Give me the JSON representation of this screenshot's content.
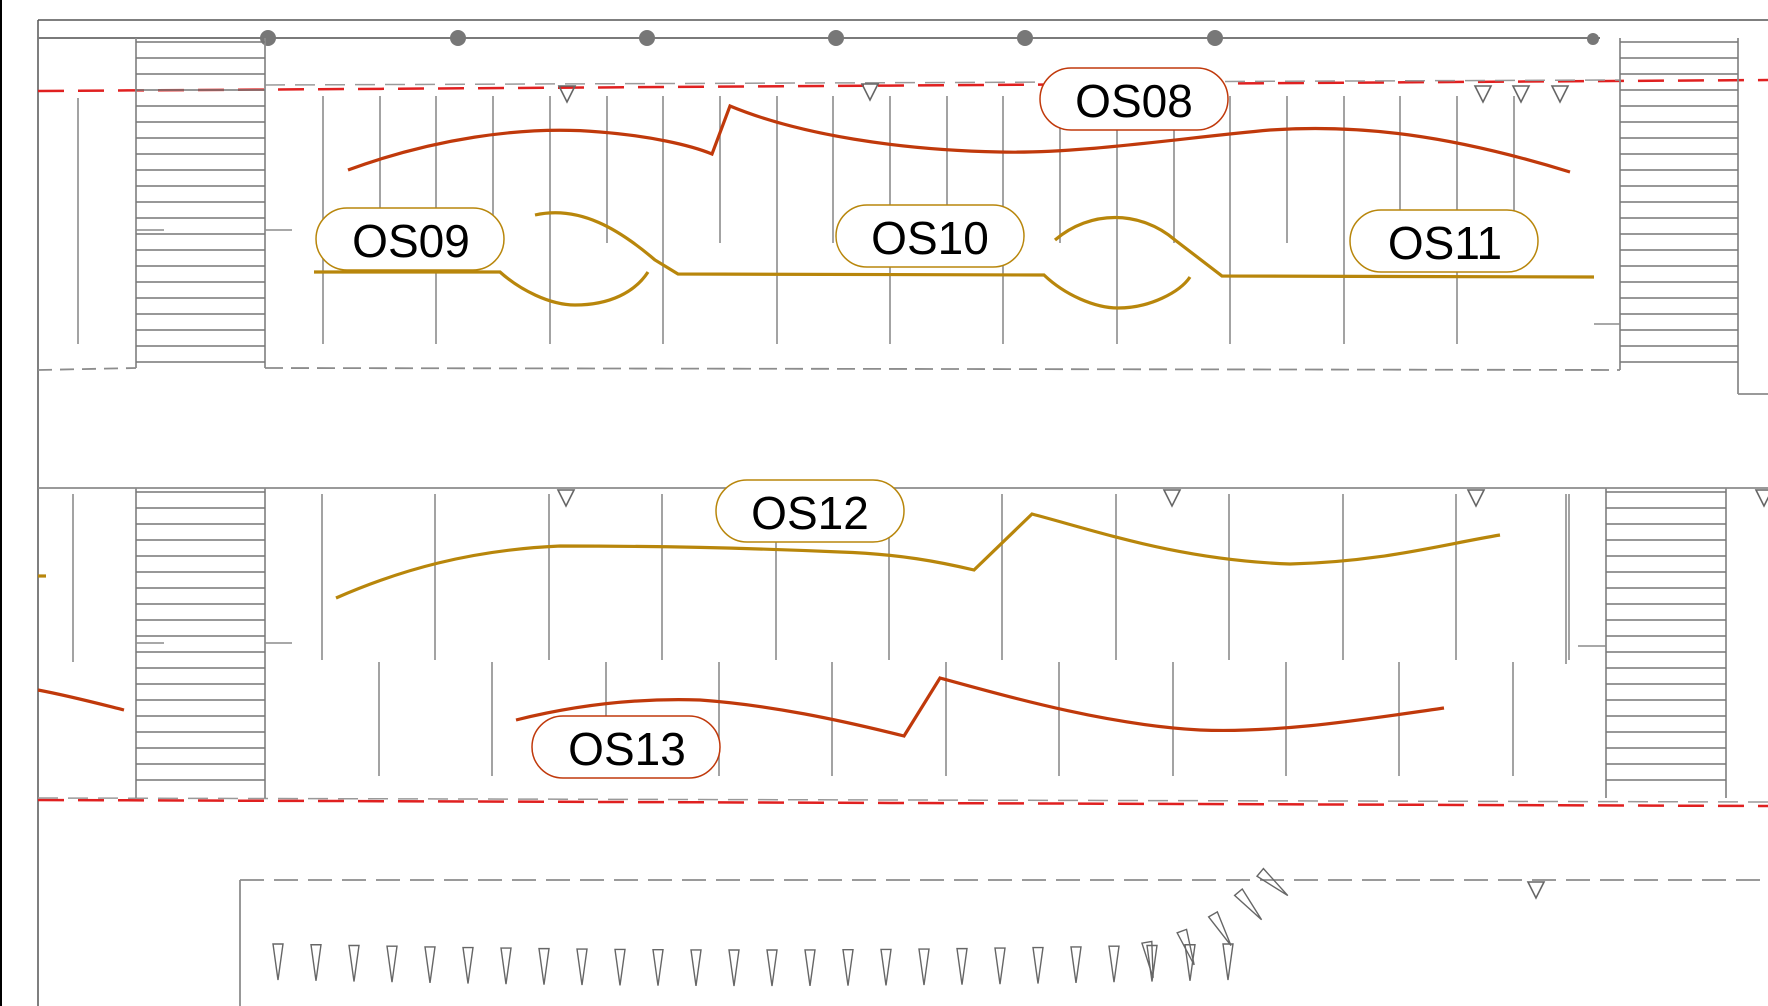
{
  "colors": {
    "line": "#8c8c8c",
    "dark": "#5a5a5a",
    "red_route": "#c0390b",
    "gold_route": "#b8860b",
    "boundary_red": "#e02020",
    "label_fill": "#ffffff"
  },
  "routes": [
    {
      "id": "OS08",
      "label": "OS08",
      "color_key": "red_route"
    },
    {
      "id": "OS09",
      "label": "OS09",
      "color_key": "gold_route"
    },
    {
      "id": "OS10",
      "label": "OS10",
      "color_key": "gold_route"
    },
    {
      "id": "OS11",
      "label": "OS11",
      "color_key": "gold_route"
    },
    {
      "id": "OS12",
      "label": "OS12",
      "color_key": "gold_route"
    },
    {
      "id": "OS13",
      "label": "OS13",
      "color_key": "red_route"
    }
  ]
}
